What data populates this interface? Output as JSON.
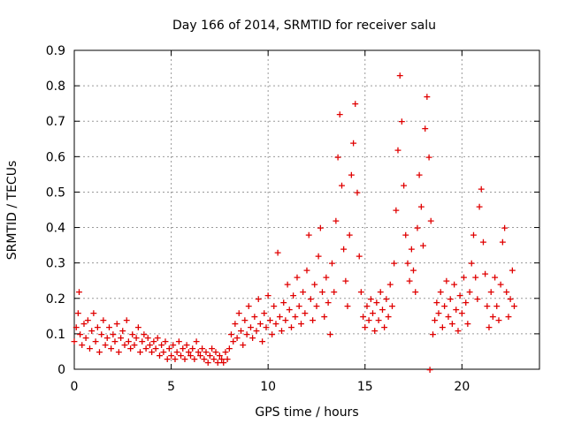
{
  "chart_data": {
    "type": "scatter",
    "title": "Day 166 of 2014, SRMTID for receiver salu",
    "xlabel": "GPS time / hours",
    "ylabel": "SRMTID / TECUs",
    "xlim": [
      0,
      24
    ],
    "ylim": [
      0,
      0.9
    ],
    "xticks": [
      0,
      5,
      10,
      15,
      20
    ],
    "yticks": [
      0,
      0.1,
      0.2,
      0.3,
      0.4,
      0.5,
      0.6,
      0.7,
      0.8,
      0.9
    ],
    "grid": true,
    "marker": "+",
    "series": [
      {
        "name": "salu",
        "color": "#e00000",
        "points": [
          [
            0.0,
            0.08
          ],
          [
            0.1,
            0.12
          ],
          [
            0.2,
            0.16
          ],
          [
            0.25,
            0.22
          ],
          [
            0.3,
            0.1
          ],
          [
            0.4,
            0.07
          ],
          [
            0.5,
            0.13
          ],
          [
            0.6,
            0.09
          ],
          [
            0.7,
            0.14
          ],
          [
            0.8,
            0.06
          ],
          [
            0.9,
            0.11
          ],
          [
            1.0,
            0.16
          ],
          [
            1.1,
            0.08
          ],
          [
            1.2,
            0.12
          ],
          [
            1.3,
            0.05
          ],
          [
            1.4,
            0.1
          ],
          [
            1.5,
            0.14
          ],
          [
            1.6,
            0.07
          ],
          [
            1.7,
            0.09
          ],
          [
            1.8,
            0.12
          ],
          [
            1.9,
            0.06
          ],
          [
            2.0,
            0.1
          ],
          [
            2.1,
            0.08
          ],
          [
            2.2,
            0.13
          ],
          [
            2.3,
            0.05
          ],
          [
            2.4,
            0.09
          ],
          [
            2.5,
            0.11
          ],
          [
            2.6,
            0.07
          ],
          [
            2.7,
            0.14
          ],
          [
            2.8,
            0.08
          ],
          [
            2.9,
            0.06
          ],
          [
            3.0,
            0.1
          ],
          [
            3.1,
            0.07
          ],
          [
            3.2,
            0.09
          ],
          [
            3.3,
            0.12
          ],
          [
            3.4,
            0.05
          ],
          [
            3.5,
            0.08
          ],
          [
            3.6,
            0.1
          ],
          [
            3.7,
            0.06
          ],
          [
            3.8,
            0.09
          ],
          [
            3.9,
            0.07
          ],
          [
            4.0,
            0.05
          ],
          [
            4.1,
            0.08
          ],
          [
            4.2,
            0.06
          ],
          [
            4.3,
            0.09
          ],
          [
            4.4,
            0.04
          ],
          [
            4.5,
            0.07
          ],
          [
            4.6,
            0.05
          ],
          [
            4.7,
            0.08
          ],
          [
            4.8,
            0.03
          ],
          [
            4.9,
            0.06
          ],
          [
            5.0,
            0.04
          ],
          [
            5.1,
            0.07
          ],
          [
            5.2,
            0.03
          ],
          [
            5.3,
            0.05
          ],
          [
            5.4,
            0.08
          ],
          [
            5.5,
            0.04
          ],
          [
            5.6,
            0.06
          ],
          [
            5.7,
            0.03
          ],
          [
            5.8,
            0.07
          ],
          [
            5.9,
            0.05
          ],
          [
            6.0,
            0.04
          ],
          [
            6.1,
            0.06
          ],
          [
            6.2,
            0.03
          ],
          [
            6.3,
            0.08
          ],
          [
            6.4,
            0.05
          ],
          [
            6.5,
            0.04
          ],
          [
            6.6,
            0.06
          ],
          [
            6.7,
            0.03
          ],
          [
            6.8,
            0.05
          ],
          [
            6.9,
            0.02
          ],
          [
            7.0,
            0.04
          ],
          [
            7.1,
            0.06
          ],
          [
            7.2,
            0.03
          ],
          [
            7.3,
            0.05
          ],
          [
            7.4,
            0.02
          ],
          [
            7.5,
            0.04
          ],
          [
            7.6,
            0.03
          ],
          [
            7.7,
            0.02
          ],
          [
            7.8,
            0.05
          ],
          [
            7.9,
            0.03
          ],
          [
            8.0,
            0.06
          ],
          [
            8.1,
            0.1
          ],
          [
            8.2,
            0.08
          ],
          [
            8.3,
            0.13
          ],
          [
            8.4,
            0.09
          ],
          [
            8.5,
            0.16
          ],
          [
            8.6,
            0.11
          ],
          [
            8.7,
            0.07
          ],
          [
            8.8,
            0.14
          ],
          [
            8.9,
            0.1
          ],
          [
            9.0,
            0.18
          ],
          [
            9.1,
            0.12
          ],
          [
            9.2,
            0.09
          ],
          [
            9.3,
            0.15
          ],
          [
            9.4,
            0.11
          ],
          [
            9.5,
            0.2
          ],
          [
            9.6,
            0.13
          ],
          [
            9.7,
            0.08
          ],
          [
            9.8,
            0.16
          ],
          [
            9.9,
            0.12
          ],
          [
            10.0,
            0.21
          ],
          [
            10.1,
            0.14
          ],
          [
            10.2,
            0.1
          ],
          [
            10.3,
            0.18
          ],
          [
            10.4,
            0.13
          ],
          [
            10.5,
            0.33
          ],
          [
            10.6,
            0.15
          ],
          [
            10.7,
            0.11
          ],
          [
            10.8,
            0.19
          ],
          [
            10.9,
            0.14
          ],
          [
            11.0,
            0.24
          ],
          [
            11.1,
            0.17
          ],
          [
            11.2,
            0.12
          ],
          [
            11.3,
            0.21
          ],
          [
            11.4,
            0.15
          ],
          [
            11.5,
            0.26
          ],
          [
            11.6,
            0.18
          ],
          [
            11.7,
            0.13
          ],
          [
            11.8,
            0.22
          ],
          [
            11.9,
            0.16
          ],
          [
            12.0,
            0.28
          ],
          [
            12.1,
            0.38
          ],
          [
            12.2,
            0.2
          ],
          [
            12.3,
            0.14
          ],
          [
            12.4,
            0.24
          ],
          [
            12.5,
            0.18
          ],
          [
            12.6,
            0.32
          ],
          [
            12.7,
            0.4
          ],
          [
            12.8,
            0.22
          ],
          [
            12.9,
            0.15
          ],
          [
            13.0,
            0.26
          ],
          [
            13.1,
            0.19
          ],
          [
            13.2,
            0.1
          ],
          [
            13.3,
            0.3
          ],
          [
            13.4,
            0.22
          ],
          [
            13.5,
            0.42
          ],
          [
            13.6,
            0.6
          ],
          [
            13.7,
            0.72
          ],
          [
            13.8,
            0.52
          ],
          [
            13.9,
            0.34
          ],
          [
            14.0,
            0.25
          ],
          [
            14.1,
            0.18
          ],
          [
            14.2,
            0.38
          ],
          [
            14.3,
            0.55
          ],
          [
            14.4,
            0.64
          ],
          [
            14.5,
            0.75
          ],
          [
            14.6,
            0.5
          ],
          [
            14.7,
            0.32
          ],
          [
            14.8,
            0.22
          ],
          [
            14.9,
            0.15
          ],
          [
            15.0,
            0.12
          ],
          [
            15.1,
            0.18
          ],
          [
            15.2,
            0.14
          ],
          [
            15.3,
            0.2
          ],
          [
            15.4,
            0.16
          ],
          [
            15.5,
            0.11
          ],
          [
            15.6,
            0.19
          ],
          [
            15.7,
            0.14
          ],
          [
            15.8,
            0.22
          ],
          [
            15.9,
            0.17
          ],
          [
            16.0,
            0.12
          ],
          [
            16.1,
            0.2
          ],
          [
            16.2,
            0.15
          ],
          [
            16.3,
            0.24
          ],
          [
            16.4,
            0.18
          ],
          [
            16.5,
            0.3
          ],
          [
            16.6,
            0.45
          ],
          [
            16.7,
            0.62
          ],
          [
            16.8,
            0.83
          ],
          [
            16.9,
            0.7
          ],
          [
            17.0,
            0.52
          ],
          [
            17.1,
            0.38
          ],
          [
            17.2,
            0.3
          ],
          [
            17.3,
            0.25
          ],
          [
            17.4,
            0.34
          ],
          [
            17.5,
            0.28
          ],
          [
            17.6,
            0.22
          ],
          [
            17.7,
            0.4
          ],
          [
            17.8,
            0.55
          ],
          [
            17.9,
            0.46
          ],
          [
            18.0,
            0.35
          ],
          [
            18.1,
            0.68
          ],
          [
            18.2,
            0.77
          ],
          [
            18.3,
            0.6
          ],
          [
            18.4,
            0.42
          ],
          [
            18.5,
            0.1
          ],
          [
            18.6,
            0.14
          ],
          [
            18.7,
            0.19
          ],
          [
            18.8,
            0.16
          ],
          [
            18.9,
            0.22
          ],
          [
            19.0,
            0.12
          ],
          [
            19.1,
            0.18
          ],
          [
            19.2,
            0.25
          ],
          [
            19.3,
            0.15
          ],
          [
            19.4,
            0.2
          ],
          [
            19.5,
            0.13
          ],
          [
            19.6,
            0.24
          ],
          [
            19.7,
            0.17
          ],
          [
            19.8,
            0.11
          ],
          [
            19.9,
            0.21
          ],
          [
            20.0,
            0.16
          ],
          [
            20.1,
            0.26
          ],
          [
            20.2,
            0.19
          ],
          [
            20.3,
            0.13
          ],
          [
            20.4,
            0.22
          ],
          [
            20.5,
            0.3
          ],
          [
            20.6,
            0.38
          ],
          [
            20.7,
            0.26
          ],
          [
            20.8,
            0.2
          ],
          [
            20.9,
            0.46
          ],
          [
            21.0,
            0.51
          ],
          [
            21.1,
            0.36
          ],
          [
            21.2,
            0.27
          ],
          [
            21.3,
            0.18
          ],
          [
            21.4,
            0.12
          ],
          [
            21.5,
            0.22
          ],
          [
            21.6,
            0.15
          ],
          [
            21.7,
            0.26
          ],
          [
            21.8,
            0.18
          ],
          [
            21.9,
            0.14
          ],
          [
            22.0,
            0.24
          ],
          [
            22.1,
            0.36
          ],
          [
            22.2,
            0.4
          ],
          [
            22.3,
            0.22
          ],
          [
            22.4,
            0.15
          ],
          [
            22.5,
            0.2
          ],
          [
            22.6,
            0.28
          ],
          [
            22.7,
            0.18
          ],
          [
            18.35,
            0.0
          ]
        ]
      }
    ]
  }
}
